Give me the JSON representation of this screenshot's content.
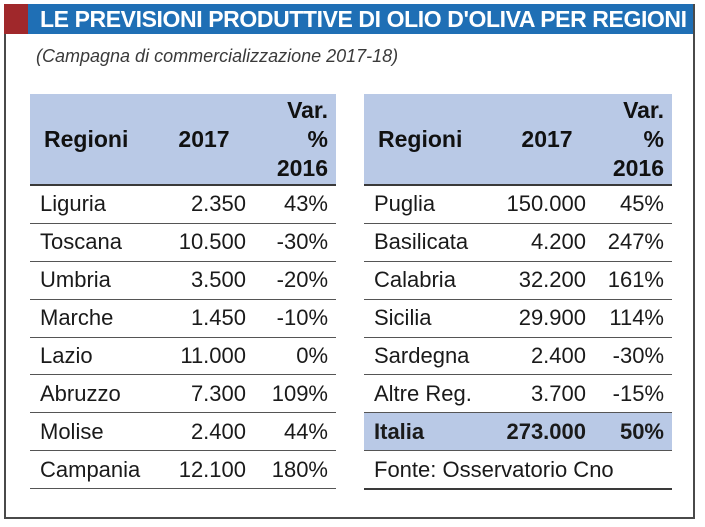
{
  "title": "LE PREVISIONI PRODUTTIVE DI OLIO D'OLIVA PER REGIONI",
  "subtitle": "(Campagna di commercializzazione 2017-18)",
  "headers": {
    "region": "Regioni",
    "year": "2017",
    "var_line1": "Var.",
    "var_line2": "%",
    "var_line3": "2016"
  },
  "left_rows": [
    {
      "region": "Liguria",
      "value": "2.350",
      "var": "43%"
    },
    {
      "region": "Toscana",
      "value": "10.500",
      "var": "-30%"
    },
    {
      "region": "Umbria",
      "value": "3.500",
      "var": "-20%"
    },
    {
      "region": "Marche",
      "value": "1.450",
      "var": "-10%"
    },
    {
      "region": "Lazio",
      "value": "11.000",
      "var": "0%"
    },
    {
      "region": "Abruzzo",
      "value": "7.300",
      "var": "109%"
    },
    {
      "region": "Molise",
      "value": "2.400",
      "var": "44%"
    },
    {
      "region": "Campania",
      "value": "12.100",
      "var": "180%"
    }
  ],
  "right_rows": [
    {
      "region": "Puglia",
      "value": "150.000",
      "var": "45%"
    },
    {
      "region": "Basilicata",
      "value": "4.200",
      "var": "247%"
    },
    {
      "region": "Calabria",
      "value": "32.200",
      "var": "161%"
    },
    {
      "region": "Sicilia",
      "value": "29.900",
      "var": "114%"
    },
    {
      "region": "Sardegna",
      "value": "2.400",
      "var": "-30%"
    },
    {
      "region": "Altre Reg.",
      "value": "3.700",
      "var": "-15%"
    }
  ],
  "total": {
    "region": "Italia",
    "value": "273.000",
    "var": "50%"
  },
  "source": "Fonte: Osservatorio Cno",
  "colors": {
    "title_bar": "#1f6fb5",
    "accent": "#a0282b",
    "header_bg": "#b9c9e6"
  }
}
